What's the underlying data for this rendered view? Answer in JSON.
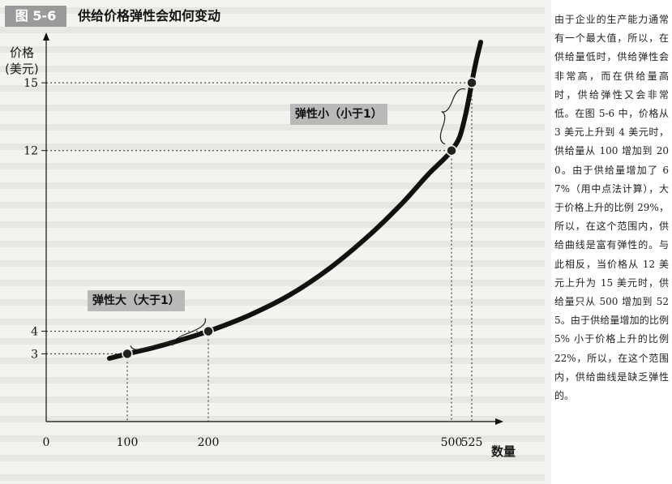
{
  "figure": {
    "number": "图 5-6",
    "title": "供给价格弹性会如何变动"
  },
  "callouts": {
    "high_price": "弹性小（小于1）",
    "low_price": "弹性大（大于1）"
  },
  "sidebar": {
    "text": "由于企业的生产能力通常有一个最大值，所以，在供给量低时，供给弹性会非常高，而在供给量高时，供给弹性又会非常低。在图 5-6 中，价格从 3 美元上升到 4 美元时，供给量从 100 增加到 200。由于供给量增加了 67%（用中点法计算），大于价格上升的比例 29%，所以，在这个范围内，供给曲线是富有弹性的。与此相反，当价格从 12 美元上升为 15 美元时，供给量只从 500 增加到 525。由于供给量增加的比例 5% 小于价格上升的比例 22%，所以，在这个范围内，供给曲线是缺乏弹性的。"
  },
  "chart_data": {
    "type": "line",
    "title": "供给价格弹性会如何变动",
    "xlabel": "数量",
    "ylabel": "价格",
    "yunit": "(美元)",
    "xlim": [
      0,
      560
    ],
    "ylim": [
      0,
      16.8
    ],
    "x_ticks": [
      "0",
      "100",
      "200",
      "500",
      "525"
    ],
    "y_ticks": [
      "3",
      "4",
      "12",
      "15"
    ],
    "x_tick_values": [
      0,
      100,
      200,
      500,
      525
    ],
    "y_tick_values": [
      3,
      4,
      12,
      15
    ],
    "highlighted_points": [
      {
        "x": 100,
        "y": 3
      },
      {
        "x": 200,
        "y": 4
      },
      {
        "x": 500,
        "y": 12
      },
      {
        "x": 525,
        "y": 15
      }
    ],
    "series": [
      {
        "color": "#111111",
        "x": [
          78,
          100,
          130,
          160,
          200,
          250,
          300,
          350,
          400,
          440,
          470,
          490,
          500,
          510,
          518,
          525,
          530,
          536
        ],
        "y": [
          2.8,
          3.0,
          3.25,
          3.55,
          4.0,
          4.7,
          5.6,
          6.8,
          8.3,
          9.7,
          10.9,
          11.6,
          12.0,
          12.6,
          13.7,
          15.0,
          15.9,
          16.8
        ]
      }
    ],
    "grid": false,
    "legend": "none"
  }
}
